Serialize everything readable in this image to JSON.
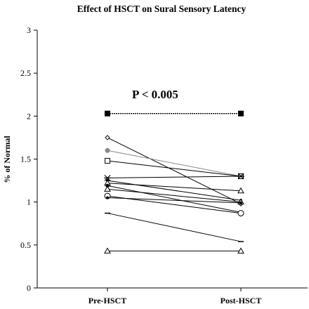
{
  "chart_data": {
    "type": "line",
    "title": "Effect of HSCT on Sural Sensory Latency",
    "ylabel": "% of Normal",
    "xlabel": "",
    "categories": [
      "Pre-HSCT",
      "Post-HSCT"
    ],
    "ylim": [
      0,
      3
    ],
    "yticks": [
      0,
      0.5,
      1,
      1.5,
      2,
      2.5,
      3
    ],
    "ytick_labels": [
      "0",
      "0.5",
      "1",
      "1.5",
      "2",
      "2.5",
      "3"
    ],
    "annotation": "P < 0.005",
    "series": [
      {
        "marker": "filled-square",
        "color": "#000000",
        "values": [
          2.03,
          2.03
        ]
      },
      {
        "marker": "small-diamond",
        "color": "#000000",
        "values": [
          1.75,
          0.98
        ]
      },
      {
        "marker": "filled-circle",
        "color": "#888888",
        "values": [
          1.6,
          1.3
        ]
      },
      {
        "marker": "open-square",
        "color": "#000000",
        "values": [
          1.48,
          1.3
        ]
      },
      {
        "marker": "star",
        "color": "#000000",
        "values": [
          1.28,
          1.3
        ]
      },
      {
        "marker": "small-dot",
        "color": "#000000",
        "values": [
          1.25,
          1.02
        ]
      },
      {
        "marker": "open-triangle",
        "color": "#000000",
        "values": [
          1.22,
          1.13
        ]
      },
      {
        "marker": "filled-dot",
        "color": "#000000",
        "values": [
          1.19,
          0.88
        ]
      },
      {
        "marker": "open-triangle",
        "color": "#000000",
        "values": [
          1.15,
          1.0
        ]
      },
      {
        "marker": "open-circle",
        "color": "#000000",
        "values": [
          1.07,
          0.87
        ]
      },
      {
        "marker": "small-dot",
        "color": "#000000",
        "values": [
          1.05,
          0.99
        ]
      },
      {
        "marker": "dash",
        "color": "#000000",
        "values": [
          0.87,
          0.54
        ]
      },
      {
        "marker": "open-triangle",
        "color": "#000000",
        "values": [
          0.43,
          0.43
        ]
      }
    ]
  }
}
